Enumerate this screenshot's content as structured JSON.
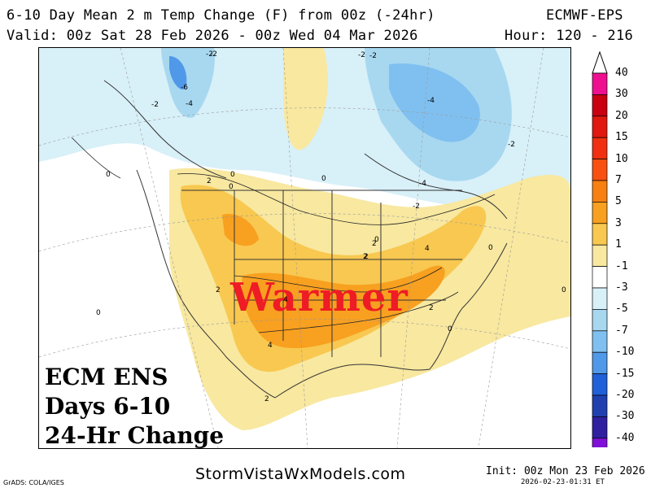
{
  "header": {
    "title": "6-10 Day Mean 2 m Temp Change (F) from 00z (-24hr)",
    "model": "ECMWF-EPS",
    "valid": "Valid: 00z Sat 28 Feb 2026 - 00z Wed 04 Mar 2026",
    "hour": "Hour: 120 - 216"
  },
  "overlay": {
    "warmer": "Warmer",
    "line1": "ECM ENS",
    "line2": "Days 6-10",
    "line3": "24-Hr Change"
  },
  "colorbar": {
    "labels": [
      "40",
      "30",
      "20",
      "15",
      "10",
      "7",
      "5",
      "3",
      "1",
      "-1",
      "-3",
      "-5",
      "-7",
      "-10",
      "-15",
      "-20",
      "-30",
      "-40"
    ],
    "colors": [
      "#ee1090",
      "#c80010",
      "#e01810",
      "#f03010",
      "#f85010",
      "#f88010",
      "#f8a020",
      "#f8c850",
      "#f8e8a0",
      "#ffffff",
      "#d8f0f8",
      "#a8d8f0",
      "#80c0f0",
      "#5098e8",
      "#2060d8",
      "#2040b0",
      "#3020a0",
      "#8010d8"
    ]
  },
  "contour_labels": [
    "-2",
    "-6",
    "-4",
    "-2",
    "-2",
    "-2",
    "-4",
    "-2",
    "-4",
    "-2",
    "-2",
    "0",
    "0",
    "0",
    "2",
    "2",
    "2",
    "2",
    "0",
    "2",
    "4",
    "2",
    "4",
    "4",
    "2",
    "0",
    "0",
    "0",
    "0",
    "0"
  ],
  "footer": {
    "credit": "GrADS: COLA/IGES",
    "site": "StormVistaWxModels.com",
    "init": "Init: 00z Mon 23 Feb 2026",
    "timestamp": "2026-02-23-01:31 ET"
  }
}
